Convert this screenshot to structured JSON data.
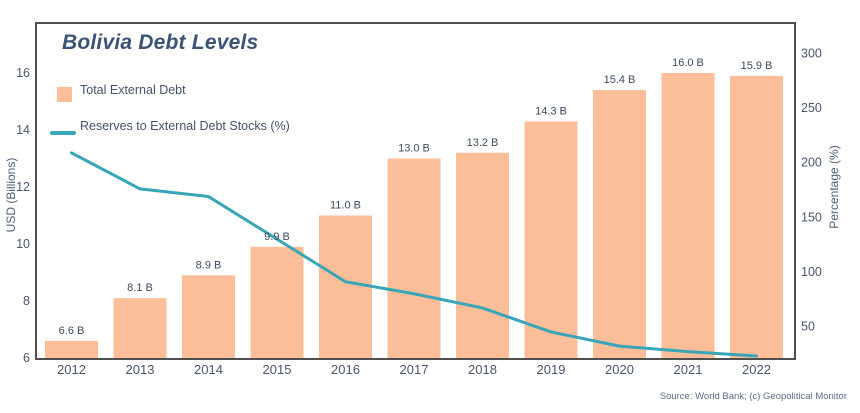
{
  "chart_data": {
    "type": "bar+line combo",
    "title": "Bolivia Debt Levels",
    "categories": [
      "2012",
      "2013",
      "2014",
      "2015",
      "2016",
      "2017",
      "2018",
      "2019",
      "2020",
      "2021",
      "2022"
    ],
    "series": [
      {
        "name": "Total External Debt",
        "type": "bar",
        "axis": "left",
        "unit": "USD Billions",
        "values": [
          6.6,
          8.1,
          8.9,
          9.9,
          11.0,
          13.0,
          13.2,
          14.3,
          15.4,
          16.0,
          15.9
        ],
        "labels": [
          "6.6 B",
          "8.1 B",
          "8.9 B",
          "9.9 B",
          "11.0 B",
          "13.0 B",
          "13.2 B",
          "14.3 B",
          "15.4 B",
          "16.0 B",
          "15.9 B"
        ]
      },
      {
        "name": "Reserves to External Debt Stocks (%)",
        "type": "line",
        "axis": "right",
        "unit": "%",
        "values": [
          209,
          176,
          169,
          130,
          91,
          80,
          67,
          45,
          32,
          27,
          23
        ]
      }
    ],
    "left_axis": {
      "label": "USD (Billions)",
      "ticks": [
        6,
        8,
        10,
        12,
        14,
        16
      ],
      "range": [
        6,
        16.8
      ]
    },
    "right_axis": {
      "label": "Percentage (%)",
      "ticks": [
        50,
        100,
        150,
        200,
        250,
        300
      ],
      "range": [
        20,
        305
      ]
    },
    "grid": false,
    "legend_position": "top-left inside",
    "source": "Source: World Bank; (c) Geopolitical Monitor",
    "colors": {
      "bar": "#FBBE98",
      "line": "#38A5B8",
      "title": "#3A5377",
      "tick_text": "#4A566E",
      "bar_label_text": "#3D4A60",
      "frame": "#4F4F4F"
    }
  }
}
